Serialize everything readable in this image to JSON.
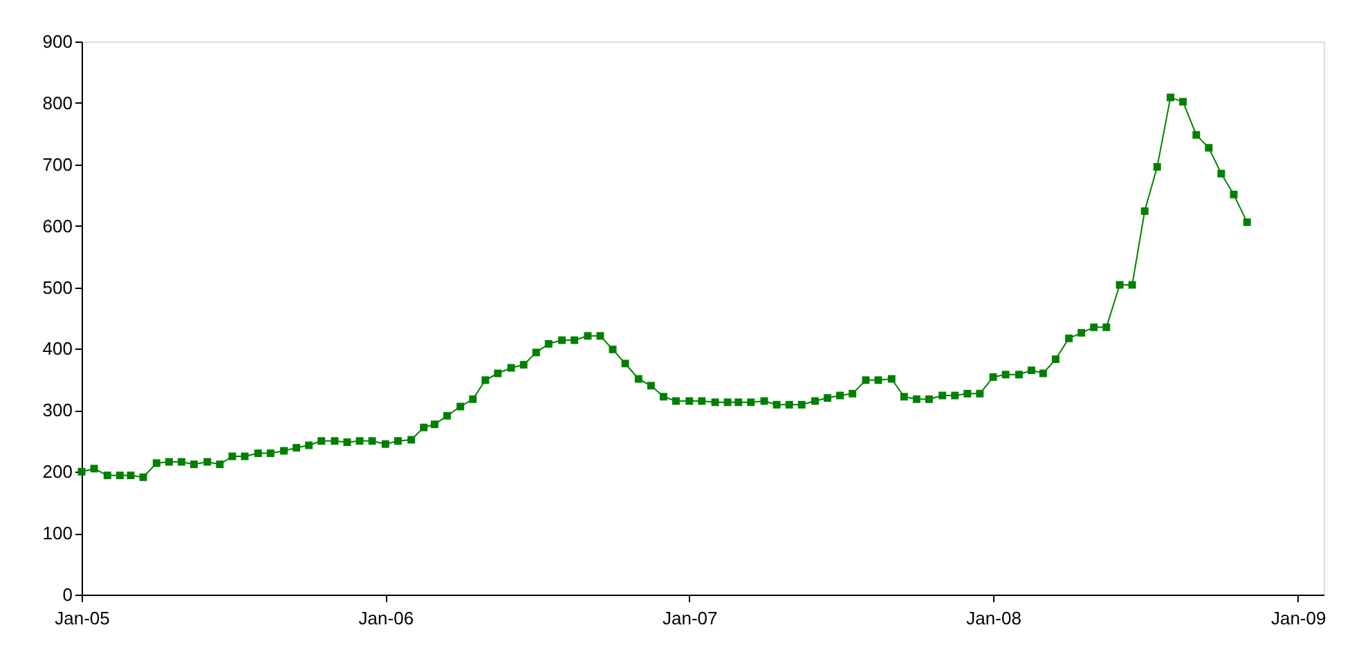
{
  "chart_data": {
    "type": "line",
    "x": [
      "2005-01-01",
      "2005-01-16",
      "2005-02-01",
      "2005-02-16",
      "2005-03-01",
      "2005-03-16",
      "2005-04-01",
      "2005-04-16",
      "2005-05-01",
      "2005-05-16",
      "2005-06-01",
      "2005-06-16",
      "2005-07-01",
      "2005-07-16",
      "2005-08-01",
      "2005-08-16",
      "2005-09-01",
      "2005-09-16",
      "2005-10-01",
      "2005-10-16",
      "2005-11-01",
      "2005-11-16",
      "2005-12-01",
      "2005-12-16",
      "2006-01-01",
      "2006-01-16",
      "2006-02-01",
      "2006-02-16",
      "2006-03-01",
      "2006-03-16",
      "2006-04-01",
      "2006-04-16",
      "2006-05-01",
      "2006-05-16",
      "2006-06-01",
      "2006-06-16",
      "2006-07-01",
      "2006-07-16",
      "2006-08-01",
      "2006-08-16",
      "2006-09-01",
      "2006-09-16",
      "2006-10-01",
      "2006-10-16",
      "2006-11-01",
      "2006-11-16",
      "2006-12-01",
      "2006-12-16",
      "2007-01-01",
      "2007-01-16",
      "2007-02-01",
      "2007-02-16",
      "2007-03-01",
      "2007-03-16",
      "2007-04-01",
      "2007-04-16",
      "2007-05-01",
      "2007-05-16",
      "2007-06-01",
      "2007-06-16",
      "2007-07-01",
      "2007-07-16",
      "2007-08-01",
      "2007-08-16",
      "2007-09-01",
      "2007-09-16",
      "2007-10-01",
      "2007-10-16",
      "2007-11-01",
      "2007-11-16",
      "2007-12-01",
      "2007-12-16",
      "2008-01-01",
      "2008-01-16",
      "2008-02-01",
      "2008-02-16",
      "2008-03-01",
      "2008-03-16",
      "2008-04-01",
      "2008-04-16",
      "2008-05-01",
      "2008-05-16",
      "2008-06-01",
      "2008-06-16",
      "2008-07-01",
      "2008-07-16",
      "2008-08-01",
      "2008-08-16",
      "2008-09-01",
      "2008-09-16",
      "2008-10-01",
      "2008-10-16",
      "2008-11-01"
    ],
    "series": [
      {
        "color": "#008000",
        "values": [
          200,
          205,
          194,
          194,
          194,
          191,
          214,
          216,
          216,
          212,
          216,
          212,
          225,
          225,
          230,
          230,
          234,
          239,
          243,
          250,
          250,
          248,
          250,
          250,
          245,
          250,
          252,
          272,
          277,
          291,
          306,
          318,
          349,
          360,
          369,
          374,
          394,
          408,
          414,
          414,
          421,
          421,
          399,
          376,
          351,
          340,
          322,
          315,
          315,
          315,
          313,
          313,
          313,
          313,
          315,
          309,
          309,
          309,
          315,
          320,
          324,
          327,
          349,
          349,
          351,
          322,
          318,
          318,
          324,
          324,
          327,
          327,
          354,
          358,
          358,
          365,
          360,
          383,
          417,
          426,
          435,
          435,
          504,
          504,
          624,
          696,
          809,
          802,
          748,
          727,
          685,
          651,
          606
        ]
      }
    ],
    "xlim": [
      "2005-01-01",
      "2009-02-01"
    ],
    "xticks": [
      {
        "value": "2005-01-01",
        "label": "Jan-05"
      },
      {
        "value": "2006-01-01",
        "label": "Jan-06"
      },
      {
        "value": "2007-01-01",
        "label": "Jan-07"
      },
      {
        "value": "2008-01-01",
        "label": "Jan-08"
      },
      {
        "value": "2009-01-01",
        "label": "Jan-09"
      }
    ],
    "ylim": [
      0,
      900
    ],
    "yticks": [
      0,
      100,
      200,
      300,
      400,
      500,
      600,
      700,
      800,
      900
    ],
    "marker": "square",
    "line_style": "solid"
  }
}
